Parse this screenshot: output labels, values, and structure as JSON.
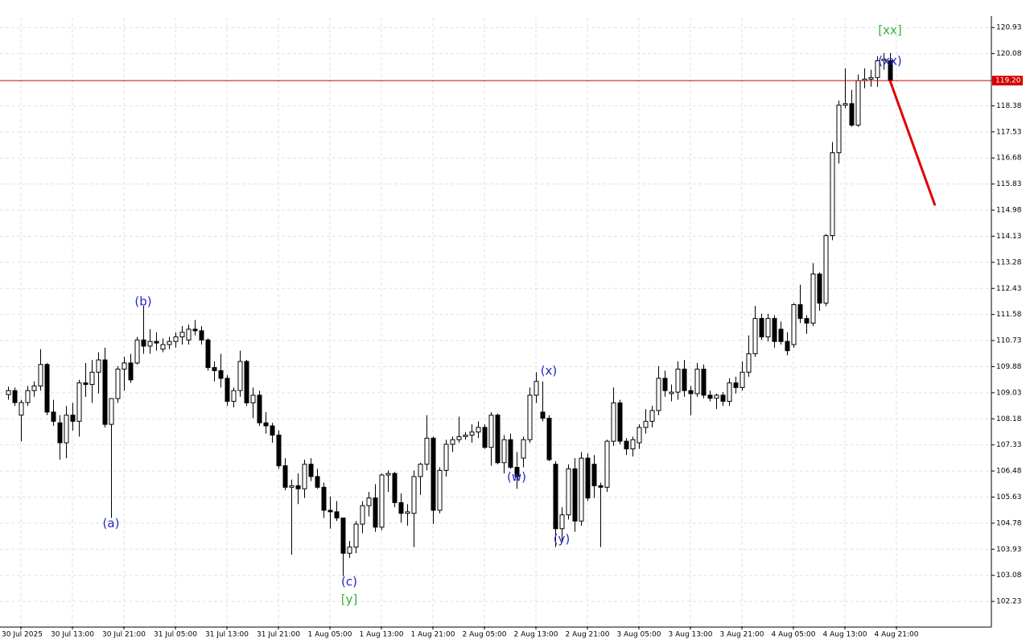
{
  "chart_data": {
    "type": "candlestick",
    "up_color": "#ffffff",
    "down_color": "#000000",
    "grid": true,
    "xlim": [
      -1.25,
      152.75
    ],
    "ylim": [
      101.42,
      121.25
    ],
    "yticks": [
      120.93,
      120.08,
      118.38,
      117.53,
      116.68,
      115.83,
      114.98,
      114.13,
      113.28,
      112.43,
      111.58,
      110.73,
      109.88,
      109.03,
      108.18,
      107.33,
      106.48,
      105.63,
      104.78,
      103.93,
      103.08,
      102.23
    ],
    "xticks": [
      {
        "value": 2,
        "label": "30 Jul 2025"
      },
      {
        "value": 10,
        "label": "30 Jul 13:00"
      },
      {
        "value": 18,
        "label": "30 Jul 21:00"
      },
      {
        "value": 26,
        "label": "31 Jul 05:00"
      },
      {
        "value": 34,
        "label": "31 Jul 13:00"
      },
      {
        "value": 42,
        "label": "31 Jul 21:00"
      },
      {
        "value": 50,
        "label": "1 Aug 05:00"
      },
      {
        "value": 58,
        "label": "1 Aug 13:00"
      },
      {
        "value": 66,
        "label": "1 Aug 21:00"
      },
      {
        "value": 74,
        "label": "2 Aug 05:00"
      },
      {
        "value": 82,
        "label": "2 Aug 13:00"
      },
      {
        "value": 90,
        "label": "2 Aug 21:00"
      },
      {
        "value": 98,
        "label": "3 Aug 05:00"
      },
      {
        "value": 106,
        "label": "3 Aug 13:00"
      },
      {
        "value": 114,
        "label": "3 Aug 21:00"
      },
      {
        "value": 122,
        "label": "4 Aug 05:00"
      },
      {
        "value": 130,
        "label": "4 Aug 13:00"
      },
      {
        "value": 138,
        "label": "4 Aug 21:00"
      }
    ],
    "open": [
      108.97,
      109.1,
      108.3,
      108.71,
      109.1,
      109.25,
      109.95,
      108.4,
      108.05,
      107.4,
      108.3,
      108.1,
      109.35,
      109.3,
      109.7,
      110.1,
      108.0,
      108.84,
      109.8,
      110.0,
      110.0,
      110.75,
      110.55,
      110.7,
      110.45,
      110.6,
      110.7,
      110.85,
      110.75,
      111.1,
      111.05,
      110.75,
      109.85,
      109.75,
      109.5,
      108.75,
      109.1,
      110.05,
      108.7,
      108.95,
      108.05,
      107.95,
      107.65,
      106.65,
      105.95,
      106.0,
      105.9,
      106.7,
      106.3,
      105.95,
      105.2,
      105.15,
      104.95,
      103.8,
      104.0,
      104.75,
      105.35,
      105.6,
      104.65,
      106.35,
      106.4,
      105.45,
      105.1,
      105.1,
      106.3,
      106.7,
      107.55,
      105.2,
      106.5,
      107.35,
      107.5,
      107.6,
      107.65,
      107.75,
      107.9,
      107.25,
      108.3,
      106.75,
      107.5,
      106.6,
      106.9,
      107.5,
      108.95,
      108.4,
      108.2,
      106.7,
      104.6,
      105.05,
      106.55,
      104.85,
      106.9,
      106.7,
      106.0,
      105.95,
      107.45,
      108.7,
      107.45,
      107.2,
      107.4,
      107.9,
      108.1,
      108.45,
      109.5,
      109.0,
      109.05,
      109.8,
      109.1,
      109.0,
      109.8,
      108.95,
      108.85,
      108.95,
      108.75,
      109.35,
      109.2,
      109.7,
      110.3,
      111.45,
      110.85,
      111.45,
      111.1,
      110.7,
      110.6,
      111.9,
      111.45,
      111.3,
      112.9,
      111.95,
      114.15,
      116.85,
      118.4,
      118.45,
      117.75,
      119.2,
      119.25,
      119.3,
      119.85,
      119.85
    ],
    "high": [
      109.23,
      109.2,
      108.8,
      109.25,
      109.4,
      110.45,
      110.0,
      108.8,
      108.3,
      108.6,
      108.7,
      109.45,
      110.0,
      110.1,
      110.35,
      110.5,
      108.85,
      109.9,
      110.2,
      110.3,
      110.85,
      111.86,
      111.1,
      111.0,
      110.8,
      110.85,
      111.0,
      111.2,
      111.25,
      111.4,
      111.2,
      110.8,
      110.05,
      110.3,
      109.6,
      109.2,
      110.4,
      110.1,
      109.2,
      109.1,
      108.4,
      108.05,
      107.8,
      106.9,
      106.2,
      106.4,
      106.85,
      106.9,
      106.55,
      106.1,
      105.65,
      105.5,
      104.95,
      104.2,
      104.85,
      105.5,
      105.8,
      106.05,
      106.4,
      106.5,
      106.45,
      105.75,
      105.4,
      106.5,
      106.75,
      108.3,
      107.6,
      106.6,
      107.5,
      107.6,
      108.25,
      107.75,
      108.0,
      108.1,
      108.0,
      108.4,
      108.35,
      107.65,
      107.7,
      107.1,
      107.6,
      109.2,
      109.7,
      109.4,
      108.3,
      106.8,
      105.3,
      106.7,
      106.9,
      107.1,
      107.05,
      107.0,
      106.1,
      107.5,
      109.2,
      108.8,
      107.55,
      107.6,
      108.0,
      108.5,
      108.6,
      109.9,
      109.75,
      109.3,
      110.05,
      110.1,
      109.25,
      110.0,
      109.95,
      109.1,
      109.0,
      109.05,
      109.5,
      109.55,
      110.05,
      110.9,
      111.86,
      111.6,
      111.6,
      111.55,
      111.35,
      111.0,
      111.95,
      112.55,
      111.55,
      113.25,
      112.95,
      114.2,
      117.2,
      118.55,
      119.6,
      118.9,
      119.4,
      119.6,
      119.55,
      120.0,
      120.1,
      120.1
    ],
    "low": [
      108.8,
      108.6,
      107.45,
      108.6,
      108.9,
      109.1,
      108.3,
      107.95,
      106.85,
      106.9,
      107.8,
      107.6,
      108.9,
      108.7,
      109.0,
      107.9,
      104.95,
      108.7,
      109.1,
      109.35,
      109.95,
      110.3,
      110.3,
      110.4,
      110.35,
      110.45,
      110.5,
      110.6,
      110.6,
      110.9,
      110.6,
      109.75,
      109.4,
      109.2,
      108.6,
      108.55,
      108.9,
      108.6,
      108.2,
      107.95,
      107.7,
      107.4,
      106.55,
      105.85,
      103.75,
      105.4,
      105.6,
      106.15,
      105.9,
      104.95,
      104.6,
      104.85,
      103.05,
      103.65,
      103.8,
      104.45,
      105.0,
      104.5,
      104.55,
      105.8,
      105.3,
      104.8,
      104.7,
      104.0,
      105.7,
      106.5,
      104.75,
      105.1,
      106.3,
      107.1,
      107.4,
      107.5,
      107.4,
      107.55,
      107.2,
      106.65,
      106.7,
      106.4,
      106.55,
      105.9,
      106.6,
      107.4,
      108.7,
      108.1,
      106.8,
      104.0,
      104.2,
      104.9,
      104.5,
      104.7,
      105.5,
      105.6,
      104.0,
      105.8,
      107.3,
      107.35,
      107.0,
      106.95,
      107.2,
      107.7,
      107.9,
      108.3,
      108.9,
      108.75,
      108.8,
      108.9,
      108.3,
      108.9,
      108.85,
      108.75,
      108.5,
      108.6,
      108.6,
      109.0,
      109.1,
      109.55,
      110.2,
      110.75,
      110.7,
      110.5,
      110.6,
      110.25,
      110.5,
      111.3,
      110.95,
      111.2,
      111.7,
      111.85,
      114.0,
      116.5,
      118.3,
      117.7,
      117.7,
      118.95,
      119.0,
      119.0,
      119.55,
      119.2
    ],
    "close": [
      109.1,
      108.71,
      108.71,
      109.1,
      109.25,
      109.95,
      108.4,
      108.1,
      107.4,
      108.3,
      108.1,
      109.35,
      109.3,
      109.7,
      110.1,
      108.0,
      108.84,
      109.8,
      110.0,
      109.45,
      110.75,
      110.55,
      110.7,
      110.65,
      110.6,
      110.7,
      110.85,
      111.0,
      111.1,
      111.05,
      110.75,
      109.85,
      109.75,
      109.5,
      108.75,
      109.1,
      110.05,
      108.7,
      108.95,
      108.05,
      107.95,
      107.65,
      106.65,
      105.95,
      106.0,
      105.9,
      106.7,
      106.3,
      105.95,
      105.2,
      105.15,
      104.95,
      103.8,
      104.0,
      104.75,
      105.35,
      105.6,
      104.65,
      106.35,
      106.4,
      105.45,
      105.1,
      105.15,
      106.3,
      106.7,
      107.55,
      105.2,
      106.5,
      107.35,
      107.5,
      107.6,
      107.65,
      107.75,
      107.9,
      107.25,
      108.3,
      106.75,
      107.5,
      106.6,
      106.3,
      107.5,
      108.95,
      109.4,
      108.2,
      106.85,
      104.6,
      105.05,
      106.55,
      104.85,
      106.9,
      105.6,
      106.0,
      105.95,
      107.45,
      108.7,
      107.45,
      107.2,
      107.5,
      107.9,
      108.1,
      108.45,
      109.5,
      109.1,
      109.05,
      109.8,
      109.1,
      109.0,
      109.8,
      108.95,
      108.85,
      108.95,
      108.75,
      109.35,
      109.2,
      109.7,
      110.3,
      111.45,
      110.85,
      111.45,
      110.7,
      110.7,
      110.4,
      111.9,
      111.45,
      111.3,
      112.9,
      111.95,
      114.15,
      116.85,
      118.4,
      118.45,
      117.75,
      119.2,
      119.25,
      119.3,
      119.85,
      119.9,
      119.2
    ],
    "current_price": {
      "value": 119.2,
      "label": "119.20"
    },
    "price_line_color": "#d40000",
    "forecast": {
      "x": [
        137,
        144
      ],
      "values": [
        119.2,
        115.13
      ],
      "color": "#e00000"
    },
    "annotations": [
      {
        "text": "(a)",
        "x": 16,
        "y": 104.77,
        "color": "#2424c8"
      },
      {
        "text": "(b)",
        "x": 21,
        "y": 111.99,
        "color": "#2424c8"
      },
      {
        "text": "(c)",
        "x": 53,
        "y": 102.86,
        "color": "#2424c8"
      },
      {
        "text": "[y]",
        "x": 53,
        "y": 102.28,
        "color": "#3cb03c"
      },
      {
        "text": "(w)",
        "x": 79,
        "y": 106.27,
        "color": "#2424c8"
      },
      {
        "text": "(x)",
        "x": 84,
        "y": 109.73,
        "color": "#2424c8"
      },
      {
        "text": "(y)",
        "x": 86,
        "y": 104.25,
        "color": "#2424c8"
      },
      {
        "text": "(xx)",
        "x": 137,
        "y": 119.83,
        "color": "#2424c8"
      },
      {
        "text": "[xx]",
        "x": 137,
        "y": 120.83,
        "color": "#3cb03c"
      }
    ]
  }
}
